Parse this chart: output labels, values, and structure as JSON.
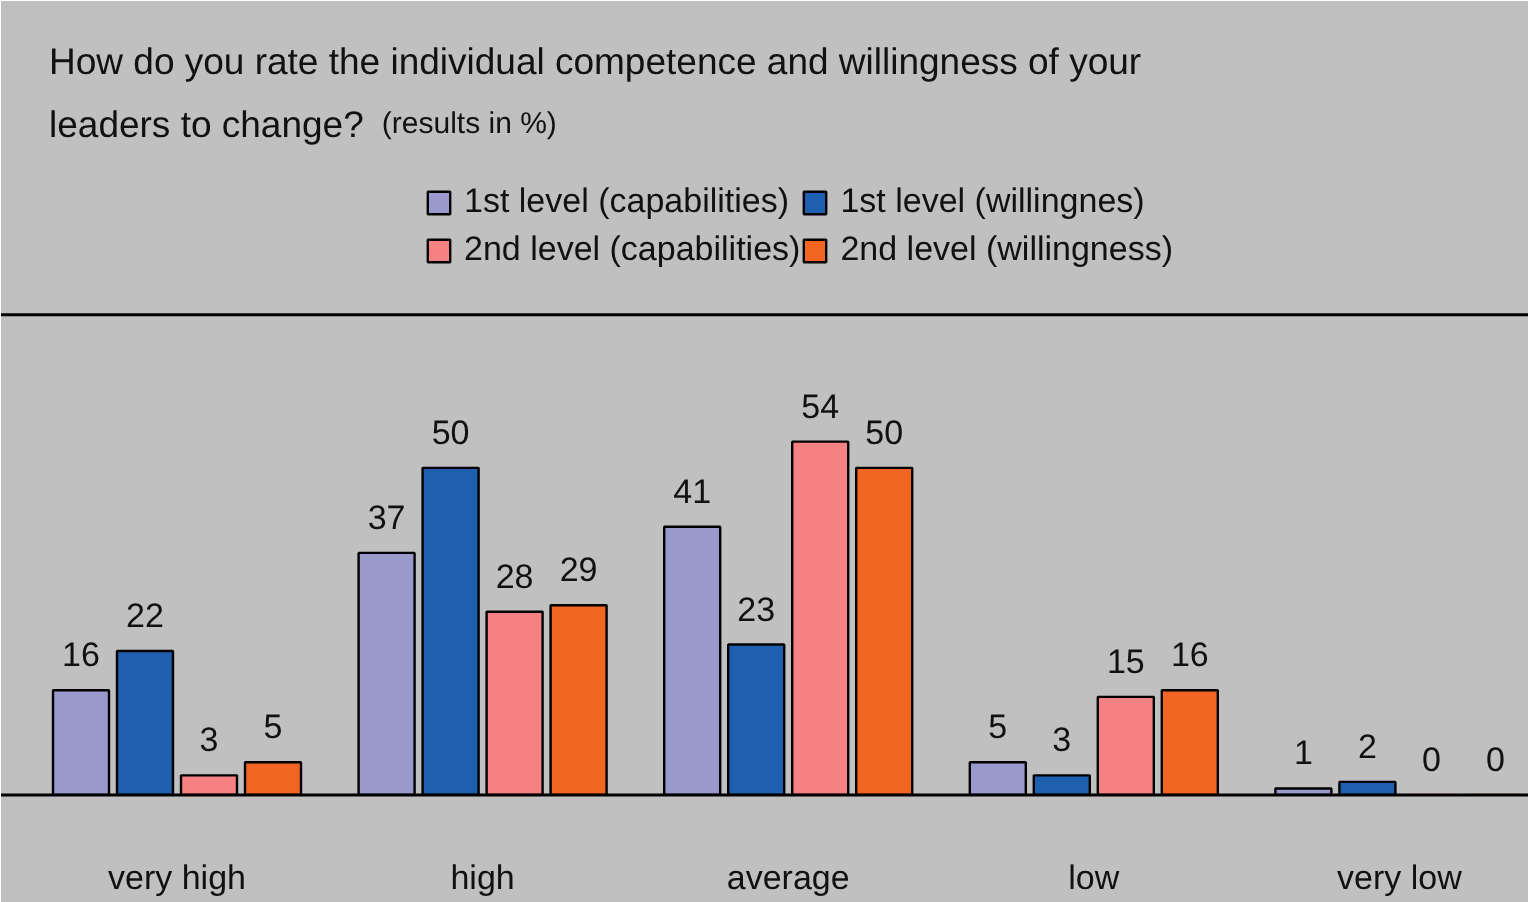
{
  "chart_data": {
    "type": "bar",
    "title": "How do you rate the individual competence and willingness of your leaders to change?",
    "subtitle": "(results in %)",
    "categories": [
      "very high",
      "high",
      "average",
      "low",
      "very low"
    ],
    "series": [
      {
        "name": "1st level (capabilities)",
        "color": "#9999cc",
        "values": [
          16,
          37,
          41,
          5,
          1
        ]
      },
      {
        "name": "1st level (willingnes)",
        "color": "#1f5fb0",
        "values": [
          22,
          50,
          23,
          3,
          2
        ]
      },
      {
        "name": "2nd level (capabilities)",
        "color": "#f58282",
        "values": [
          3,
          28,
          54,
          15,
          0
        ]
      },
      {
        "name": "2nd level (willingness)",
        "color": "#f26522",
        "values": [
          5,
          29,
          50,
          16,
          0
        ]
      }
    ],
    "data_labels": true,
    "legend": "top right",
    "grid": false
  }
}
